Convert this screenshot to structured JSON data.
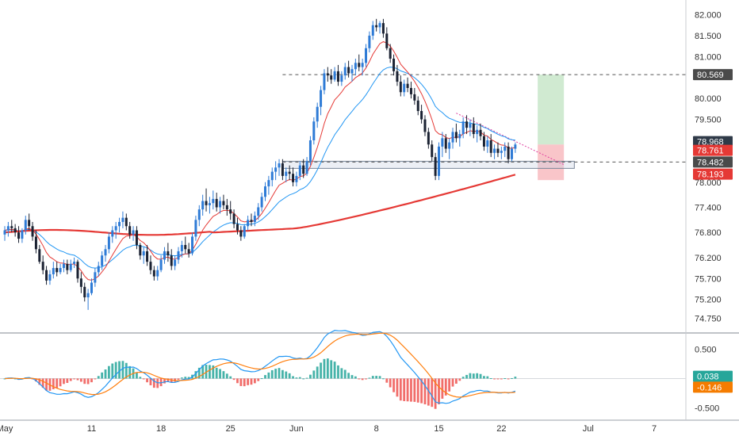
{
  "chart_data": {
    "price_pane": {
      "type": "candlestick",
      "y_axis_ticks": [
        "82.000",
        "81.500",
        "81.000",
        "80.000",
        "79.500",
        "78.000",
        "77.400",
        "76.800",
        "76.200",
        "75.700",
        "75.200",
        "74.750"
      ],
      "badges": [
        {
          "label": "80.569",
          "value": 80.569,
          "color": "#4a4a4a"
        },
        {
          "label": "78.968",
          "value": 78.968,
          "color": "#2f3a48"
        },
        {
          "label": "78.761",
          "value": 78.761,
          "color": "#e53935"
        },
        {
          "label": "78.482",
          "value": 78.482,
          "color": "#4a4a4a"
        },
        {
          "label": "78.193",
          "value": 78.193,
          "color": "#e53935"
        }
      ],
      "horizontal_levels": [
        80.569,
        78.482
      ],
      "candles": [
        [
          0,
          76.75,
          76.95,
          76.6,
          76.85
        ],
        [
          1,
          76.85,
          77.05,
          76.7,
          76.95
        ],
        [
          2,
          76.95,
          77.1,
          76.8,
          76.9
        ],
        [
          3,
          76.9,
          77.0,
          76.7,
          76.8
        ],
        [
          4,
          76.8,
          76.95,
          76.55,
          76.65
        ],
        [
          5,
          76.65,
          76.9,
          76.55,
          76.85
        ],
        [
          6,
          76.85,
          77.2,
          76.75,
          77.1
        ],
        [
          7,
          77.1,
          77.25,
          76.85,
          76.95
        ],
        [
          8,
          76.95,
          77.05,
          76.6,
          76.7
        ],
        [
          9,
          76.7,
          76.85,
          76.3,
          76.4
        ],
        [
          10,
          76.4,
          76.5,
          76.05,
          76.1
        ],
        [
          11,
          76.1,
          76.25,
          75.8,
          75.9
        ],
        [
          12,
          75.9,
          76.0,
          75.55,
          75.65
        ],
        [
          13,
          75.65,
          75.9,
          75.55,
          75.8
        ],
        [
          14,
          75.8,
          76.1,
          75.7,
          75.95
        ],
        [
          15,
          75.95,
          76.1,
          75.75,
          75.85
        ],
        [
          16,
          75.85,
          76.05,
          75.8,
          75.95
        ],
        [
          17,
          75.95,
          76.15,
          75.85,
          76.05
        ],
        [
          18,
          76.05,
          76.15,
          75.8,
          75.9
        ],
        [
          19,
          75.9,
          76.15,
          75.85,
          76.05
        ],
        [
          20,
          76.05,
          76.2,
          75.95,
          76.1
        ],
        [
          21,
          76.1,
          76.15,
          75.6,
          75.7
        ],
        [
          22,
          75.7,
          75.85,
          75.35,
          75.5
        ],
        [
          23,
          75.5,
          75.6,
          75.15,
          75.25
        ],
        [
          24,
          75.25,
          75.45,
          74.95,
          75.35
        ],
        [
          25,
          75.35,
          75.7,
          75.3,
          75.6
        ],
        [
          26,
          75.6,
          75.95,
          75.5,
          75.85
        ],
        [
          27,
          75.85,
          76.1,
          75.75,
          76.0
        ],
        [
          28,
          76.0,
          76.35,
          75.9,
          76.25
        ],
        [
          29,
          76.25,
          76.5,
          76.1,
          76.4
        ],
        [
          30,
          76.4,
          76.8,
          76.3,
          76.7
        ],
        [
          31,
          76.7,
          76.95,
          76.55,
          76.85
        ],
        [
          32,
          76.85,
          77.05,
          76.65,
          76.95
        ],
        [
          33,
          76.95,
          77.15,
          76.8,
          77.05
        ],
        [
          34,
          77.05,
          77.3,
          76.9,
          77.15
        ],
        [
          35,
          77.15,
          77.25,
          76.85,
          76.95
        ],
        [
          36,
          76.95,
          77.05,
          76.65,
          76.75
        ],
        [
          37,
          76.75,
          76.95,
          76.6,
          76.85
        ],
        [
          38,
          76.85,
          76.95,
          76.4,
          76.5
        ],
        [
          39,
          76.5,
          76.55,
          76.15,
          76.25
        ],
        [
          40,
          76.25,
          76.45,
          76.05,
          76.35
        ],
        [
          41,
          76.35,
          76.5,
          76.0,
          76.1
        ],
        [
          42,
          76.1,
          76.25,
          75.8,
          75.9
        ],
        [
          43,
          75.9,
          76.0,
          75.65,
          75.75
        ],
        [
          44,
          75.75,
          76.0,
          75.65,
          75.9
        ],
        [
          45,
          75.9,
          76.25,
          75.85,
          76.15
        ],
        [
          46,
          76.15,
          76.45,
          76.05,
          76.35
        ],
        [
          47,
          76.35,
          76.55,
          76.1,
          76.25
        ],
        [
          48,
          76.25,
          76.4,
          75.9,
          76.0
        ],
        [
          49,
          76.0,
          76.25,
          75.9,
          76.15
        ],
        [
          50,
          76.15,
          76.45,
          76.05,
          76.35
        ],
        [
          51,
          76.35,
          76.6,
          76.2,
          76.5
        ],
        [
          52,
          76.5,
          76.7,
          76.3,
          76.4
        ],
        [
          53,
          76.4,
          76.55,
          76.2,
          76.3
        ],
        [
          54,
          76.3,
          76.8,
          76.25,
          76.7
        ],
        [
          55,
          76.7,
          77.2,
          76.6,
          77.1
        ],
        [
          56,
          77.1,
          77.45,
          76.95,
          77.35
        ],
        [
          57,
          77.35,
          77.7,
          77.2,
          77.55
        ],
        [
          58,
          77.55,
          77.85,
          77.3,
          77.45
        ],
        [
          59,
          77.45,
          77.65,
          77.25,
          77.5
        ],
        [
          60,
          77.5,
          77.8,
          77.35,
          77.6
        ],
        [
          61,
          77.6,
          77.75,
          77.3,
          77.4
        ],
        [
          62,
          77.4,
          77.65,
          77.25,
          77.55
        ],
        [
          63,
          77.55,
          77.7,
          77.35,
          77.45
        ],
        [
          64,
          77.45,
          77.6,
          77.2,
          77.35
        ],
        [
          65,
          77.35,
          77.55,
          77.1,
          77.25
        ],
        [
          66,
          77.25,
          77.35,
          76.9,
          77.0
        ],
        [
          67,
          77.0,
          77.15,
          76.75,
          76.85
        ],
        [
          68,
          76.85,
          76.95,
          76.6,
          76.7
        ],
        [
          69,
          76.7,
          77.0,
          76.65,
          76.95
        ],
        [
          70,
          76.95,
          77.2,
          76.85,
          77.1
        ],
        [
          71,
          77.1,
          77.25,
          76.95,
          77.05
        ],
        [
          72,
          77.05,
          77.3,
          76.95,
          77.2
        ],
        [
          73,
          77.2,
          77.5,
          77.1,
          77.4
        ],
        [
          74,
          77.4,
          77.75,
          77.3,
          77.65
        ],
        [
          75,
          77.65,
          78.0,
          77.55,
          77.9
        ],
        [
          76,
          77.9,
          78.15,
          77.7,
          78.05
        ],
        [
          77,
          78.05,
          78.35,
          77.9,
          78.25
        ],
        [
          78,
          78.25,
          78.5,
          78.05,
          78.35
        ],
        [
          79,
          78.35,
          78.55,
          78.15,
          78.45
        ],
        [
          80,
          78.45,
          78.55,
          78.05,
          78.15
        ],
        [
          81,
          78.15,
          78.35,
          78.0,
          78.25
        ],
        [
          82,
          78.25,
          78.4,
          78.05,
          78.2
        ],
        [
          83,
          78.2,
          78.35,
          77.9,
          78.0
        ],
        [
          84,
          78.0,
          78.25,
          77.9,
          78.15
        ],
        [
          85,
          78.15,
          78.5,
          78.05,
          78.4
        ],
        [
          86,
          78.4,
          78.55,
          78.1,
          78.2
        ],
        [
          87,
          78.2,
          78.6,
          78.15,
          78.5
        ],
        [
          88,
          78.5,
          79.1,
          78.4,
          79.0
        ],
        [
          89,
          79.0,
          79.55,
          78.9,
          79.45
        ],
        [
          90,
          79.45,
          79.9,
          79.3,
          79.8
        ],
        [
          91,
          79.8,
          80.3,
          79.6,
          80.2
        ],
        [
          92,
          80.2,
          80.7,
          80.1,
          80.6
        ],
        [
          93,
          80.6,
          80.75,
          80.4,
          80.55
        ],
        [
          94,
          80.55,
          80.7,
          80.35,
          80.45
        ],
        [
          95,
          80.45,
          80.75,
          80.4,
          80.65
        ],
        [
          96,
          80.65,
          80.8,
          80.3,
          80.4
        ],
        [
          97,
          80.4,
          80.65,
          80.3,
          80.55
        ],
        [
          98,
          80.55,
          80.85,
          80.45,
          80.75
        ],
        [
          99,
          80.75,
          80.9,
          80.5,
          80.6
        ],
        [
          100,
          80.6,
          80.8,
          80.4,
          80.7
        ],
        [
          101,
          80.7,
          80.95,
          80.55,
          80.85
        ],
        [
          102,
          80.85,
          81.05,
          80.65,
          80.75
        ],
        [
          103,
          80.75,
          80.95,
          80.55,
          80.85
        ],
        [
          104,
          80.85,
          81.3,
          80.75,
          81.2
        ],
        [
          105,
          81.2,
          81.6,
          81.1,
          81.5
        ],
        [
          106,
          81.5,
          81.85,
          81.4,
          81.75
        ],
        [
          107,
          81.75,
          81.9,
          81.6,
          81.7
        ],
        [
          108,
          81.7,
          81.85,
          81.55,
          81.8
        ],
        [
          109,
          81.8,
          81.9,
          81.45,
          81.55
        ],
        [
          110,
          81.55,
          81.7,
          81.15,
          81.2
        ],
        [
          111,
          81.2,
          81.3,
          80.85,
          80.95
        ],
        [
          112,
          80.95,
          81.05,
          80.55,
          80.65
        ],
        [
          113,
          80.65,
          80.8,
          80.3,
          80.4
        ],
        [
          114,
          80.4,
          80.55,
          80.05,
          80.15
        ],
        [
          115,
          80.15,
          80.45,
          80.05,
          80.35
        ],
        [
          116,
          80.35,
          80.5,
          80.15,
          80.25
        ],
        [
          117,
          80.25,
          80.4,
          80.0,
          80.1
        ],
        [
          118,
          80.1,
          80.25,
          79.85,
          79.95
        ],
        [
          119,
          79.95,
          80.05,
          79.6,
          79.7
        ],
        [
          120,
          79.7,
          79.85,
          79.4,
          79.5
        ],
        [
          121,
          79.5,
          79.6,
          79.1,
          79.2
        ],
        [
          122,
          79.2,
          79.3,
          78.8,
          78.9
        ],
        [
          123,
          78.9,
          79.0,
          78.5,
          78.6
        ],
        [
          124,
          78.6,
          78.7,
          78.05,
          78.15
        ],
        [
          125,
          78.15,
          78.95,
          78.05,
          78.85
        ],
        [
          126,
          78.85,
          79.2,
          78.6,
          79.05
        ],
        [
          127,
          79.05,
          79.15,
          78.7,
          78.8
        ],
        [
          128,
          78.8,
          79.05,
          78.55,
          78.95
        ],
        [
          129,
          78.95,
          79.3,
          78.8,
          79.2
        ],
        [
          130,
          79.2,
          79.4,
          78.95,
          79.05
        ],
        [
          131,
          79.05,
          79.25,
          78.85,
          79.15
        ],
        [
          132,
          79.15,
          79.55,
          79.05,
          79.45
        ],
        [
          133,
          79.45,
          79.6,
          79.15,
          79.3
        ],
        [
          134,
          79.3,
          79.5,
          79.1,
          79.4
        ],
        [
          135,
          79.4,
          79.55,
          79.05,
          79.15
        ],
        [
          136,
          79.15,
          79.35,
          78.95,
          79.25
        ],
        [
          137,
          79.25,
          79.4,
          79.0,
          79.1
        ],
        [
          138,
          79.1,
          79.2,
          78.75,
          78.85
        ],
        [
          139,
          78.85,
          79.1,
          78.7,
          79.0
        ],
        [
          140,
          79.0,
          79.15,
          78.6,
          78.7
        ],
        [
          141,
          78.7,
          78.9,
          78.55,
          78.8
        ],
        [
          142,
          78.8,
          78.95,
          78.6,
          78.7
        ],
        [
          143,
          78.7,
          78.85,
          78.55,
          78.75
        ],
        [
          144,
          78.75,
          78.95,
          78.6,
          78.85
        ],
        [
          145,
          78.85,
          78.95,
          78.45,
          78.55
        ],
        [
          146,
          78.55,
          78.85,
          78.5,
          78.8
        ],
        [
          147,
          78.8,
          78.95,
          78.7,
          78.9
        ]
      ]
    },
    "oscillator_pane": {
      "type": "histogram+lines",
      "y_axis_ticks": [
        "0.500",
        "-0.500"
      ],
      "badges": [
        {
          "label": "0.038",
          "value": 0.038,
          "color": "#26a69a"
        },
        {
          "label": "-0.146",
          "value": -0.146,
          "color": "#f57c00"
        }
      ]
    },
    "x_axis_labels": [
      {
        "label": "May",
        "index": 0
      },
      {
        "label": "11",
        "index": 25
      },
      {
        "label": "18",
        "index": 45
      },
      {
        "label": "25",
        "index": 65
      },
      {
        "label": "Jun",
        "index": 84
      },
      {
        "label": "8",
        "index": 107
      },
      {
        "label": "15",
        "index": 125
      },
      {
        "label": "22",
        "index": 143
      },
      {
        "label": "Jul",
        "index": 168
      },
      {
        "label": "7",
        "index": 187
      }
    ],
    "colors": {
      "up_candle": "#2e7bd6",
      "down_candle": "#1b2232",
      "ema_fast": "#e53935",
      "ema_slow": "#2196f3",
      "ma_long": "#e53935",
      "macd": "#2196f3",
      "signal": "#ff7f0e",
      "hist_up": "#26a69a",
      "hist_down": "#ef5350",
      "target_zone": "#c8e6c9",
      "stop_zone": "#f8bbbf"
    }
  }
}
